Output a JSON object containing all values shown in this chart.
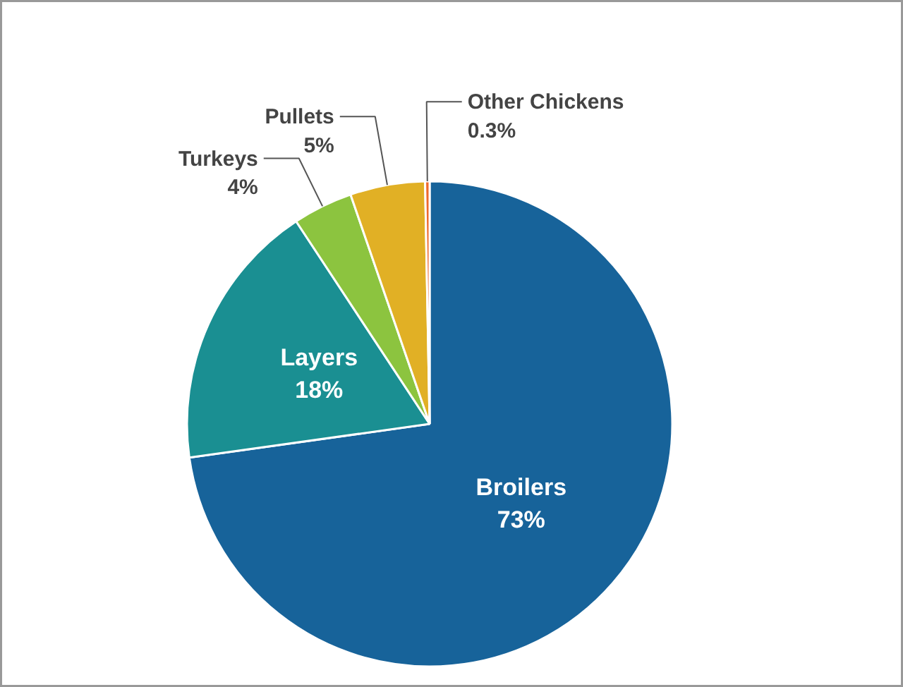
{
  "chart_data": {
    "type": "pie",
    "categories": [
      "Broilers",
      "Layers",
      "Turkeys",
      "Pullets",
      "Other Chickens"
    ],
    "values": [
      73,
      18,
      4,
      5,
      0.3
    ],
    "value_labels": [
      "73%",
      "18%",
      "4%",
      "5%",
      "0.3%"
    ],
    "colors": [
      "#17639a",
      "#1a8f92",
      "#8cc43f",
      "#e1b025",
      "#ee6a2c"
    ]
  }
}
